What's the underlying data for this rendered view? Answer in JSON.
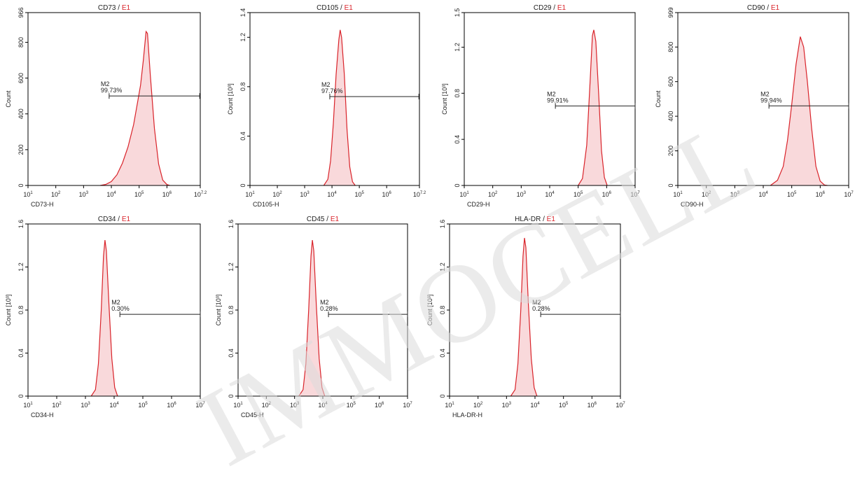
{
  "watermark": "IMMOCELL",
  "colors": {
    "histogram_line": "#d9232a",
    "histogram_fill": "#f9d9db",
    "gate_label": "#d9232a",
    "axis": "#000000",
    "marker": "#222222"
  },
  "chart_data": [
    {
      "type": "histogram",
      "title": "CD73",
      "gate": "E1",
      "xlabel": "CD73-H",
      "ylabel": "Count",
      "x_scale": "log",
      "xlim_log10": [
        1,
        7.2
      ],
      "x_ticks": [
        {
          "base": "10",
          "exp": "1"
        },
        {
          "base": "10",
          "exp": "2"
        },
        {
          "base": "10",
          "exp": "3"
        },
        {
          "base": "10",
          "exp": "4"
        },
        {
          "base": "10",
          "exp": "5"
        },
        {
          "base": "10",
          "exp": "6"
        },
        {
          "base": "10",
          "exp": "7.2"
        }
      ],
      "ylim": [
        0,
        966
      ],
      "y_ticks": [
        "0",
        "200",
        "400",
        "600",
        "800",
        "966"
      ],
      "y_tick_values": [
        0,
        200,
        400,
        600,
        800,
        966
      ],
      "marker": {
        "name": "M2",
        "percent": "99.73%",
        "from_log10": 3.92,
        "to_log10": 7.18,
        "y": 500
      },
      "histogram": [
        [
          3.6,
          0
        ],
        [
          3.8,
          6
        ],
        [
          4.0,
          22
        ],
        [
          4.2,
          60
        ],
        [
          4.4,
          125
        ],
        [
          4.6,
          215
        ],
        [
          4.8,
          340
        ],
        [
          4.95,
          470
        ],
        [
          5.05,
          560
        ],
        [
          5.15,
          700
        ],
        [
          5.25,
          860
        ],
        [
          5.3,
          850
        ],
        [
          5.4,
          620
        ],
        [
          5.55,
          320
        ],
        [
          5.7,
          120
        ],
        [
          5.85,
          30
        ],
        [
          6.0,
          5
        ],
        [
          6.1,
          0
        ]
      ]
    },
    {
      "type": "histogram",
      "title": "CD105",
      "gate": "E1",
      "xlabel": "CD105-H",
      "ylabel": "Count [10³]",
      "x_scale": "log",
      "xlim_log10": [
        1,
        7.2
      ],
      "x_ticks": [
        {
          "base": "10",
          "exp": "1"
        },
        {
          "base": "10",
          "exp": "2"
        },
        {
          "base": "10",
          "exp": "3"
        },
        {
          "base": "10",
          "exp": "4"
        },
        {
          "base": "10",
          "exp": "5"
        },
        {
          "base": "10",
          "exp": "6"
        },
        {
          "base": "10",
          "exp": "7.2"
        }
      ],
      "ylim": [
        0,
        1.4
      ],
      "y_ticks": [
        "0",
        "0.4",
        "0.8",
        "1.2",
        "1.4"
      ],
      "y_tick_values": [
        0,
        0.4,
        0.8,
        1.2,
        1.4
      ],
      "marker": {
        "name": "M2",
        "percent": "97.76%",
        "from_log10": 3.92,
        "to_log10": 7.18,
        "y": 0.72
      },
      "histogram": [
        [
          3.7,
          0
        ],
        [
          3.85,
          0.05
        ],
        [
          3.95,
          0.2
        ],
        [
          4.05,
          0.5
        ],
        [
          4.15,
          0.9
        ],
        [
          4.25,
          1.18
        ],
        [
          4.3,
          1.26
        ],
        [
          4.35,
          1.2
        ],
        [
          4.45,
          0.9
        ],
        [
          4.55,
          0.45
        ],
        [
          4.65,
          0.15
        ],
        [
          4.75,
          0.03
        ],
        [
          4.85,
          0
        ]
      ]
    },
    {
      "type": "histogram",
      "title": "CD29",
      "gate": "E1",
      "xlabel": "CD29-H",
      "ylabel": "Count [10³]",
      "x_scale": "log",
      "xlim_log10": [
        1,
        7
      ],
      "x_ticks": [
        {
          "base": "10",
          "exp": "1"
        },
        {
          "base": "10",
          "exp": "2"
        },
        {
          "base": "10",
          "exp": "3"
        },
        {
          "base": "10",
          "exp": "4"
        },
        {
          "base": "10",
          "exp": "5"
        },
        {
          "base": "10",
          "exp": "6"
        },
        {
          "base": "10",
          "exp": "7"
        }
      ],
      "ylim": [
        0,
        1.5
      ],
      "y_ticks": [
        "0",
        "0.4",
        "0.8",
        "1.2",
        "1.5"
      ],
      "y_tick_values": [
        0,
        0.4,
        0.8,
        1.2,
        1.5
      ],
      "marker": {
        "name": "M2",
        "percent": "99.91%",
        "from_log10": 4.2,
        "to_log10": 7,
        "y": 0.69
      },
      "histogram": [
        [
          5.0,
          0
        ],
        [
          5.15,
          0.06
        ],
        [
          5.3,
          0.35
        ],
        [
          5.42,
          0.9
        ],
        [
          5.5,
          1.3
        ],
        [
          5.55,
          1.35
        ],
        [
          5.62,
          1.25
        ],
        [
          5.72,
          0.8
        ],
        [
          5.82,
          0.3
        ],
        [
          5.92,
          0.07
        ],
        [
          6.02,
          0
        ]
      ]
    },
    {
      "type": "histogram",
      "title": "CD90",
      "gate": "E1",
      "xlabel": "CD90-H",
      "ylabel": "Count",
      "x_scale": "log",
      "xlim_log10": [
        1,
        7
      ],
      "x_ticks": [
        {
          "base": "10",
          "exp": "1"
        },
        {
          "base": "10",
          "exp": "2"
        },
        {
          "base": "10",
          "exp": "3"
        },
        {
          "base": "10",
          "exp": "4"
        },
        {
          "base": "10",
          "exp": "5"
        },
        {
          "base": "10",
          "exp": "6"
        },
        {
          "base": "10",
          "exp": "7"
        }
      ],
      "ylim": [
        0,
        999
      ],
      "y_ticks": [
        "0",
        "200",
        "400",
        "600",
        "800",
        "999"
      ],
      "y_tick_values": [
        0,
        200,
        400,
        600,
        800,
        999
      ],
      "marker": {
        "name": "M2",
        "percent": "99.94%",
        "from_log10": 4.2,
        "to_log10": 7,
        "y": 460
      },
      "histogram": [
        [
          4.25,
          0
        ],
        [
          4.5,
          30
        ],
        [
          4.7,
          110
        ],
        [
          4.85,
          260
        ],
        [
          5.0,
          470
        ],
        [
          5.15,
          700
        ],
        [
          5.3,
          860
        ],
        [
          5.42,
          800
        ],
        [
          5.55,
          600
        ],
        [
          5.7,
          330
        ],
        [
          5.85,
          110
        ],
        [
          6.0,
          25
        ],
        [
          6.15,
          3
        ],
        [
          6.25,
          0
        ]
      ]
    },
    {
      "type": "histogram",
      "title": "CD34",
      "gate": "E1",
      "xlabel": "CD34-H",
      "ylabel": "Count [10³]",
      "x_scale": "log",
      "xlim_log10": [
        1,
        7
      ],
      "x_ticks": [
        {
          "base": "10",
          "exp": "1"
        },
        {
          "base": "10",
          "exp": "2"
        },
        {
          "base": "10",
          "exp": "3"
        },
        {
          "base": "10",
          "exp": "4"
        },
        {
          "base": "10",
          "exp": "5"
        },
        {
          "base": "10",
          "exp": "6"
        },
        {
          "base": "10",
          "exp": "7"
        }
      ],
      "ylim": [
        0,
        1.6
      ],
      "y_ticks": [
        "0",
        "0.4",
        "0.8",
        "1.2",
        "1.6"
      ],
      "y_tick_values": [
        0,
        0.4,
        0.8,
        1.2,
        1.6
      ],
      "marker": {
        "name": "M2",
        "percent": "0.30%",
        "from_log10": 4.2,
        "to_log10": 7,
        "y": 0.76
      },
      "histogram": [
        [
          3.2,
          0
        ],
        [
          3.35,
          0.06
        ],
        [
          3.45,
          0.3
        ],
        [
          3.55,
          0.8
        ],
        [
          3.63,
          1.3
        ],
        [
          3.68,
          1.45
        ],
        [
          3.73,
          1.35
        ],
        [
          3.82,
          0.85
        ],
        [
          3.92,
          0.35
        ],
        [
          4.02,
          0.08
        ],
        [
          4.12,
          0
        ]
      ]
    },
    {
      "type": "histogram",
      "title": "CD45",
      "gate": "E1",
      "xlabel": "CD45-H",
      "ylabel": "Count [10³]",
      "x_scale": "log",
      "xlim_log10": [
        1,
        7
      ],
      "x_ticks": [
        {
          "base": "10",
          "exp": "1"
        },
        {
          "base": "10",
          "exp": "2"
        },
        {
          "base": "10",
          "exp": "3"
        },
        {
          "base": "10",
          "exp": "4"
        },
        {
          "base": "10",
          "exp": "5"
        },
        {
          "base": "10",
          "exp": "6"
        },
        {
          "base": "10",
          "exp": "7"
        }
      ],
      "ylim": [
        0,
        1.6
      ],
      "y_ticks": [
        "0",
        "0.4",
        "0.8",
        "1.2",
        "1.6"
      ],
      "y_tick_values": [
        0,
        0.4,
        0.8,
        1.2,
        1.6
      ],
      "marker": {
        "name": "M2",
        "percent": "0.28%",
        "from_log10": 4.2,
        "to_log10": 7,
        "y": 0.76
      },
      "histogram": [
        [
          3.15,
          0
        ],
        [
          3.3,
          0.06
        ],
        [
          3.4,
          0.3
        ],
        [
          3.5,
          0.8
        ],
        [
          3.58,
          1.3
        ],
        [
          3.63,
          1.45
        ],
        [
          3.68,
          1.35
        ],
        [
          3.77,
          0.85
        ],
        [
          3.87,
          0.35
        ],
        [
          3.97,
          0.08
        ],
        [
          4.07,
          0
        ]
      ]
    },
    {
      "type": "histogram",
      "title": "HLA-DR",
      "gate": "E1",
      "xlabel": "HLA-DR-H",
      "ylabel": "Count [10³]",
      "x_scale": "log",
      "xlim_log10": [
        1,
        7
      ],
      "x_ticks": [
        {
          "base": "10",
          "exp": "1"
        },
        {
          "base": "10",
          "exp": "2"
        },
        {
          "base": "10",
          "exp": "3"
        },
        {
          "base": "10",
          "exp": "4"
        },
        {
          "base": "10",
          "exp": "5"
        },
        {
          "base": "10",
          "exp": "6"
        },
        {
          "base": "10",
          "exp": "7"
        }
      ],
      "ylim": [
        0,
        1.6
      ],
      "y_ticks": [
        "0",
        "0.4",
        "0.8",
        "1.2",
        "1.6"
      ],
      "y_tick_values": [
        0,
        0.4,
        0.8,
        1.2,
        1.6
      ],
      "marker": {
        "name": "M2",
        "percent": "0.28%",
        "from_log10": 4.2,
        "to_log10": 7,
        "y": 0.76
      },
      "histogram": [
        [
          3.15,
          0
        ],
        [
          3.3,
          0.06
        ],
        [
          3.4,
          0.3
        ],
        [
          3.5,
          0.8
        ],
        [
          3.58,
          1.3
        ],
        [
          3.63,
          1.47
        ],
        [
          3.68,
          1.38
        ],
        [
          3.77,
          0.85
        ],
        [
          3.87,
          0.35
        ],
        [
          3.97,
          0.08
        ],
        [
          4.07,
          0
        ]
      ]
    }
  ]
}
